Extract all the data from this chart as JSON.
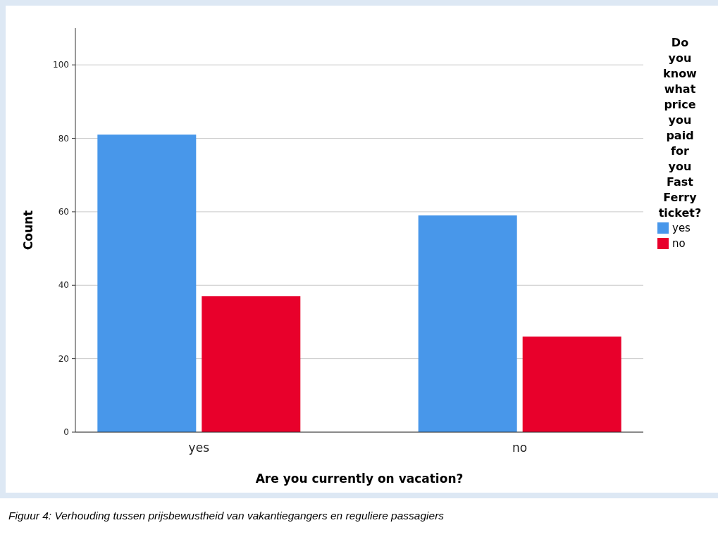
{
  "chart_data": {
    "type": "bar",
    "xlabel": "Are you currently on vacation?",
    "ylabel": "Count",
    "legend_title": "Do you know what price you paid for you Fast Ferry ticket?",
    "categories": [
      "yes",
      "no"
    ],
    "series": [
      {
        "name": "yes",
        "color": "#4897ea",
        "values": [
          81,
          59
        ]
      },
      {
        "name": "no",
        "color": "#e8002b",
        "values": [
          37,
          26
        ]
      }
    ],
    "ylim": [
      0,
      110
    ],
    "yticks": [
      0,
      20,
      40,
      60,
      80,
      100
    ],
    "grid": "y",
    "legend": "right",
    "annotations": [
      "Figuur 4: Verhouding tussen prijsbewustheid van vakantiegangers en reguliere passagiers"
    ]
  }
}
